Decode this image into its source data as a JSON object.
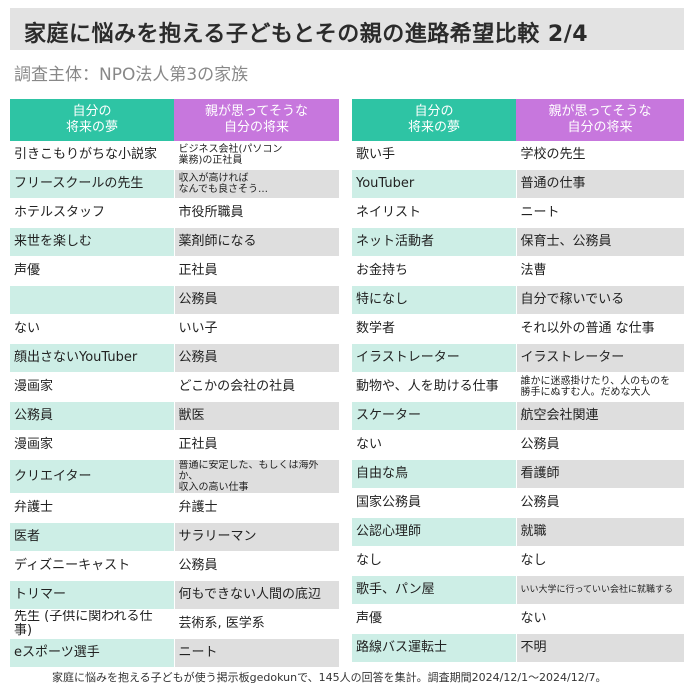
{
  "header": {
    "title": "家庭に悩みを抱える子どもとその親の進路希望比較 2/4",
    "subtitle": "調査主体：NPO法人第3の家族"
  },
  "columns": {
    "dream": "自分の\n将来の夢",
    "parent": "親が思ってそうな\n自分の将来"
  },
  "left_rows": [
    {
      "dream": "引きこもりがちな小説家",
      "parent": "ビジネス会社(パソコン\n業務)の正社員"
    },
    {
      "dream": "フリースクールの先生",
      "parent": "収入が高ければ\nなんでも良さそう…"
    },
    {
      "dream": "ホテルスタッフ",
      "parent": "市役所職員"
    },
    {
      "dream": "来世を楽しむ",
      "parent": "薬剤師になる"
    },
    {
      "dream": "声優",
      "parent": "正社員"
    },
    {
      "dream": "",
      "parent": "公務員"
    },
    {
      "dream": "ない",
      "parent": "いい子"
    },
    {
      "dream": "顔出さないYouTuber",
      "parent": "公務員"
    },
    {
      "dream": "漫画家",
      "parent": "どこかの会社の社員"
    },
    {
      "dream": "公務員",
      "parent": "獣医"
    },
    {
      "dream": "漫画家",
      "parent": "正社員"
    },
    {
      "dream": "クリエイター",
      "parent": "普通に安定した、もしくは海外\nか、\n収入の高い仕事"
    },
    {
      "dream": "弁護士",
      "parent": "弁護士"
    },
    {
      "dream": "医者",
      "parent": "サラリーマン"
    },
    {
      "dream": "ディズニーキャスト",
      "parent": "公務員"
    },
    {
      "dream": "トリマー",
      "parent": "何もできない人間の底辺"
    },
    {
      "dream": "先生 (子供に関われる仕事)",
      "parent": "芸術系, 医学系"
    },
    {
      "dream": "eスポーツ選手",
      "parent": "ニート"
    }
  ],
  "right_rows": [
    {
      "dream": "歌い手",
      "parent": "学校の先生"
    },
    {
      "dream": "YouTuber",
      "parent": "普通の仕事"
    },
    {
      "dream": "ネイリスト",
      "parent": "ニート"
    },
    {
      "dream": "ネット活動者",
      "parent": "保育士、公務員"
    },
    {
      "dream": "お金持ち",
      "parent": "法曹"
    },
    {
      "dream": "特になし",
      "parent": "自分で稼いでいる"
    },
    {
      "dream": "数学者",
      "parent": "それ以外の普通 な仕事"
    },
    {
      "dream": "イラストレーター",
      "parent": "イラストレーター"
    },
    {
      "dream": "動物や、人を助ける仕事",
      "parent": "誰かに迷惑掛けたり、人のものを\n勝手にぬすむ人。だめな大人"
    },
    {
      "dream": "スケーター",
      "parent": "航空会社関連"
    },
    {
      "dream": "ない",
      "parent": "公務員"
    },
    {
      "dream": "自由な鳥",
      "parent": "看護師"
    },
    {
      "dream": "国家公務員",
      "parent": "公務員"
    },
    {
      "dream": "公認心理師",
      "parent": "就職"
    },
    {
      "dream": "なし",
      "parent": "なし"
    },
    {
      "dream": "歌手、パン屋",
      "parent": "いい大学に行っていい会社に就職する"
    },
    {
      "dream": "声優",
      "parent": "ない"
    },
    {
      "dream": "路線バス運転士",
      "parent": "不明"
    }
  ],
  "footer": "家庭に悩みを抱える子どもが使う掲示板gedokunで、145人の回答を集計。調査期間2024/12/1～2024/12/7。"
}
